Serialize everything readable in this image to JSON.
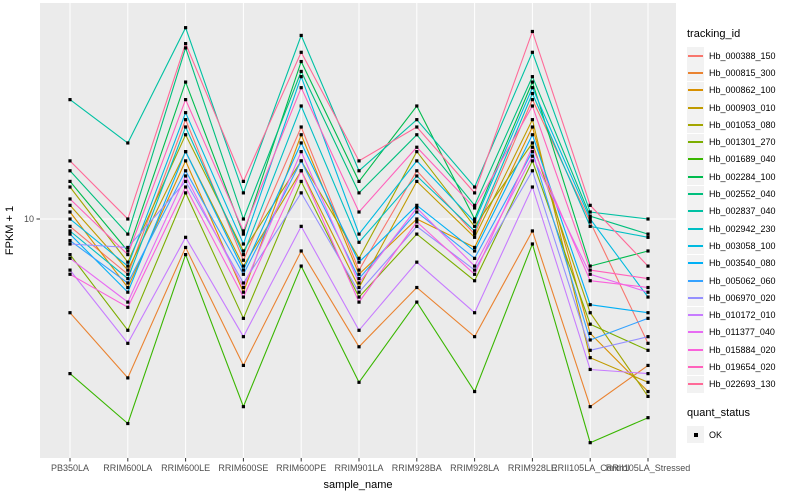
{
  "chart_data": {
    "type": "line",
    "title": "",
    "xlabel": "sample_name",
    "ylabel": "FPKM + 1",
    "y_scale": "log10",
    "y_tick_labels": [
      "10"
    ],
    "y_tick_values": [
      10
    ],
    "grid": "major-only",
    "legend_position": "right",
    "categories": [
      "PB350LA",
      "RRIM600LA",
      "RRIM600LE",
      "RRIM600SE",
      "RRIM600PE",
      "RRIM901LA",
      "RRIM928BA",
      "RRIM928LA",
      "RRIM928LE",
      "RRII105LA_Control",
      "RRII105LA_Stressed"
    ],
    "legend": {
      "tracking_title": "tracking_id",
      "quant_title": "quant_status",
      "quant_items": [
        "OK"
      ]
    },
    "point_shape": "filled-square",
    "series": [
      {
        "name": "Hb_000388_150",
        "color": "#F8766D",
        "values": [
          9.5,
          6.8,
          20,
          7.5,
          19,
          7.0,
          14,
          9.0,
          23,
          9.8,
          4.2
        ]
      },
      {
        "name": "Hb_000815_300",
        "color": "#EA8331",
        "values": [
          5.2,
          3.3,
          8.2,
          3.6,
          8.0,
          4.1,
          6.2,
          4.4,
          9.2,
          2.7,
          3.6
        ]
      },
      {
        "name": "Hb_000862_100",
        "color": "#D89000",
        "values": [
          10.5,
          6.2,
          15,
          6.0,
          18,
          6.8,
          10,
          8.2,
          19,
          4.5,
          3.0
        ]
      },
      {
        "name": "Hb_000903_010",
        "color": "#C09B00",
        "values": [
          11,
          7.0,
          16,
          7.2,
          14,
          6.2,
          13,
          8.8,
          20,
          3.8,
          3.2
        ]
      },
      {
        "name": "Hb_001053_080",
        "color": "#A3A500",
        "values": [
          12.5,
          7.4,
          18,
          8.0,
          15,
          7.6,
          16,
          9.5,
          17,
          5.2,
          2.9
        ]
      },
      {
        "name": "Hb_001301_270",
        "color": "#7CAE00",
        "values": [
          7.8,
          4.6,
          12,
          5.0,
          13,
          5.8,
          9.0,
          6.5,
          15,
          4.8,
          4.0
        ]
      },
      {
        "name": "Hb_001689_040",
        "color": "#39B600",
        "values": [
          3.4,
          2.4,
          7.8,
          2.7,
          7.2,
          3.2,
          5.6,
          3.0,
          8.4,
          2.1,
          2.5
        ]
      },
      {
        "name": "Hb_002284_100",
        "color": "#00BB4E",
        "values": [
          13,
          8.0,
          26,
          9.0,
          30,
          13,
          22,
          10,
          26,
          7.2,
          8.0
        ]
      },
      {
        "name": "Hb_002552_040",
        "color": "#00BF7D",
        "values": [
          14,
          9.0,
          33,
          10,
          28,
          12,
          18,
          11,
          27,
          10.2,
          9.0
        ]
      },
      {
        "name": "Hb_002837_040",
        "color": "#00C1A3",
        "values": [
          23,
          17,
          38,
          12,
          36,
          14,
          20,
          12.5,
          32,
          10.5,
          10
        ]
      },
      {
        "name": "Hb_002942_230",
        "color": "#00BFC4",
        "values": [
          9.2,
          6.6,
          19,
          7.8,
          22,
          8.5,
          13.5,
          9.2,
          24,
          9.5,
          8.8
        ]
      },
      {
        "name": "Hb_003058_100",
        "color": "#00BAE0",
        "values": [
          10,
          7.2,
          21,
          8.4,
          27,
          9.0,
          15,
          9.8,
          25,
          10.0,
          5.8
        ]
      },
      {
        "name": "Hb_003540_080",
        "color": "#00B0F6",
        "values": [
          9.0,
          6.0,
          16,
          7.0,
          17,
          7.4,
          11,
          8.0,
          18,
          5.5,
          5.2
        ]
      },
      {
        "name": "Hb_005062_060",
        "color": "#35A2FF",
        "values": [
          8.6,
          6.4,
          14,
          6.8,
          15,
          6.6,
          10.5,
          7.6,
          16,
          4.3,
          5.0
        ]
      },
      {
        "name": "Hb_006970_020",
        "color": "#9590FF",
        "values": [
          8.4,
          8.2,
          13,
          6.4,
          12,
          6.0,
          9.5,
          7.0,
          14,
          4.0,
          4.4
        ]
      },
      {
        "name": "Hb_010172_010",
        "color": "#C77CFF",
        "values": [
          7.0,
          4.2,
          8.8,
          4.4,
          9.5,
          4.6,
          7.4,
          5.2,
          12.5,
          3.5,
          3.4
        ]
      },
      {
        "name": "Hb_011377_040",
        "color": "#E76BF3",
        "values": [
          7.6,
          5.6,
          13.5,
          6.2,
          16,
          6.4,
          10.8,
          7.2,
          15.5,
          6.8,
          6.0
        ]
      },
      {
        "name": "Hb_015884_020",
        "color": "#FA62DB",
        "values": [
          6.8,
          5.4,
          12.5,
          5.8,
          14,
          5.6,
          9.8,
          6.8,
          16.5,
          6.5,
          6.2
        ]
      },
      {
        "name": "Hb_019654_020",
        "color": "#FF62BC",
        "values": [
          11.5,
          7.8,
          23,
          9.2,
          25,
          10.5,
          16.5,
          10.8,
          22,
          7.0,
          6.6
        ]
      },
      {
        "name": "Hb_022693_130",
        "color": "#FF6A98",
        "values": [
          15,
          10,
          34,
          13,
          32,
          15,
          19,
          12,
          37,
          11,
          7.2
        ]
      }
    ],
    "colors": {
      "panel_bg": "#EBEBEB",
      "grid": "#FFFFFF",
      "point": "#000000",
      "tick_text": "#4D4D4D",
      "axis_title_text": "#000000",
      "tick_mark": "#333333",
      "legend_key_bg": "#F2F2F2"
    }
  }
}
